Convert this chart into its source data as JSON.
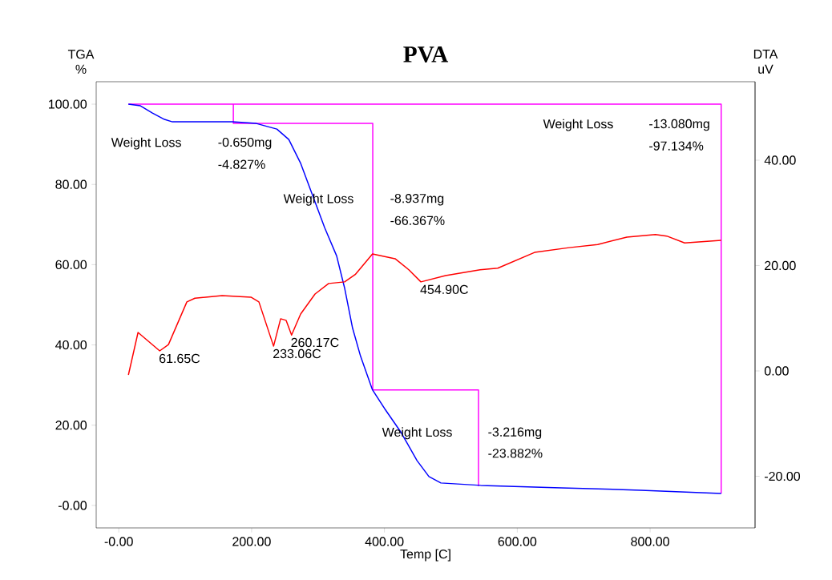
{
  "chart_data": {
    "type": "line",
    "title": "PVA",
    "xlabel": "Temp  [C]",
    "ylabel": "TGA %",
    "y2label": "DTA uV",
    "xlim": [
      -34,
      958
    ],
    "ylim": [
      -5.6,
      105.6
    ],
    "y2lim": [
      -29.8,
      54.9
    ],
    "xticks": [
      {
        "value": 0,
        "label": "-0.00"
      },
      {
        "value": 200,
        "label": "200.00"
      },
      {
        "value": 400,
        "label": "400.00"
      },
      {
        "value": 600,
        "label": "600.00"
      },
      {
        "value": 800,
        "label": "800.00"
      }
    ],
    "yticks": [
      {
        "value": 0,
        "label": "-0.00"
      },
      {
        "value": 20,
        "label": "20.00"
      },
      {
        "value": 40,
        "label": "40.00"
      },
      {
        "value": 60,
        "label": "60.00"
      },
      {
        "value": 80,
        "label": "80.00"
      },
      {
        "value": 100,
        "label": "100.00"
      }
    ],
    "y2ticks": [
      {
        "value": -20,
        "label": "-20.00"
      },
      {
        "value": 0,
        "label": "0.00"
      },
      {
        "value": 20,
        "label": "20.00"
      },
      {
        "value": 40,
        "label": "40.00"
      }
    ],
    "marker": "none",
    "line_style": "solid",
    "series": [
      {
        "color": "#ff00ff",
        "x": [
          14.5,
          907,
          907
        ],
        "values": [
          100,
          100,
          3.0
        ]
      },
      {
        "color": "#ff00ff",
        "x": [
          172.5,
          172.5,
          382.4,
          382.4
        ],
        "values": [
          100,
          95.2,
          95.2,
          28.8
        ]
      },
      {
        "color": "#ff00ff",
        "x": [
          382.4,
          541.6,
          541.6
        ],
        "values": [
          28.8,
          28.8,
          4.8
        ]
      },
      {
        "color": "#0000ff",
        "x": [
          14.5,
          32.6,
          50.7,
          68.8,
          80.8,
          111,
          171,
          207,
          238,
          256,
          274,
          292,
          310,
          328,
          340,
          352,
          364,
          382,
          400,
          425,
          449,
          467,
          485,
          545,
          666,
          786,
          907
        ],
        "values": [
          100,
          99.6,
          97.8,
          96.2,
          95.6,
          95.6,
          95.6,
          95.2,
          93.8,
          91.2,
          85.2,
          77.2,
          69.2,
          62.2,
          54.2,
          44.2,
          37.2,
          28.8,
          24.2,
          18.2,
          11.2,
          7.2,
          5.6,
          5.0,
          4.4,
          3.8,
          3.0
        ]
      },
      {
        "color": "#ff0000",
        "axis": "y2",
        "x": [
          14.5,
          29,
          61.65,
          74.8,
          102.5,
          114.6,
          155.6,
          199,
          211,
          233.06,
          243.7,
          252,
          260.17,
          273.8,
          295.5,
          316,
          340,
          356,
          382,
          416,
          436.7,
          454.9,
          492,
          544,
          570.6,
          626,
          678,
          721,
          765,
          808,
          825,
          852,
          907
        ],
        "values": [
          -0.76,
          7.3,
          3.8,
          5.0,
          13.1,
          13.8,
          14.3,
          14.0,
          13.1,
          4.7,
          9.9,
          9.6,
          6.8,
          10.8,
          14.6,
          16.6,
          16.9,
          18.3,
          22.2,
          21.3,
          19.2,
          16.9,
          18.1,
          19.2,
          19.5,
          22.5,
          23.4,
          24.0,
          25.4,
          25.9,
          25.6,
          24.3,
          24.8
        ]
      }
    ],
    "annotations": [
      "Weight Loss",
      "-0.650mg",
      "-4.827%",
      "Weight Loss",
      "-8.937mg",
      "-66.367%",
      "Weight Loss",
      "-3.216mg",
      "-23.882%",
      "Weight Loss",
      "-13.080mg",
      "-97.134%",
      {
        "text": "61.65C",
        "x": 61.65,
        "y": 38.6
      },
      {
        "text": "233.06C",
        "x": 233.06,
        "y": 39.8
      },
      {
        "text": "260.17C",
        "x": 260.17,
        "y": 42.6
      },
      {
        "text": "454.90C",
        "x": 454.9,
        "y": 55.8
      }
    ]
  }
}
